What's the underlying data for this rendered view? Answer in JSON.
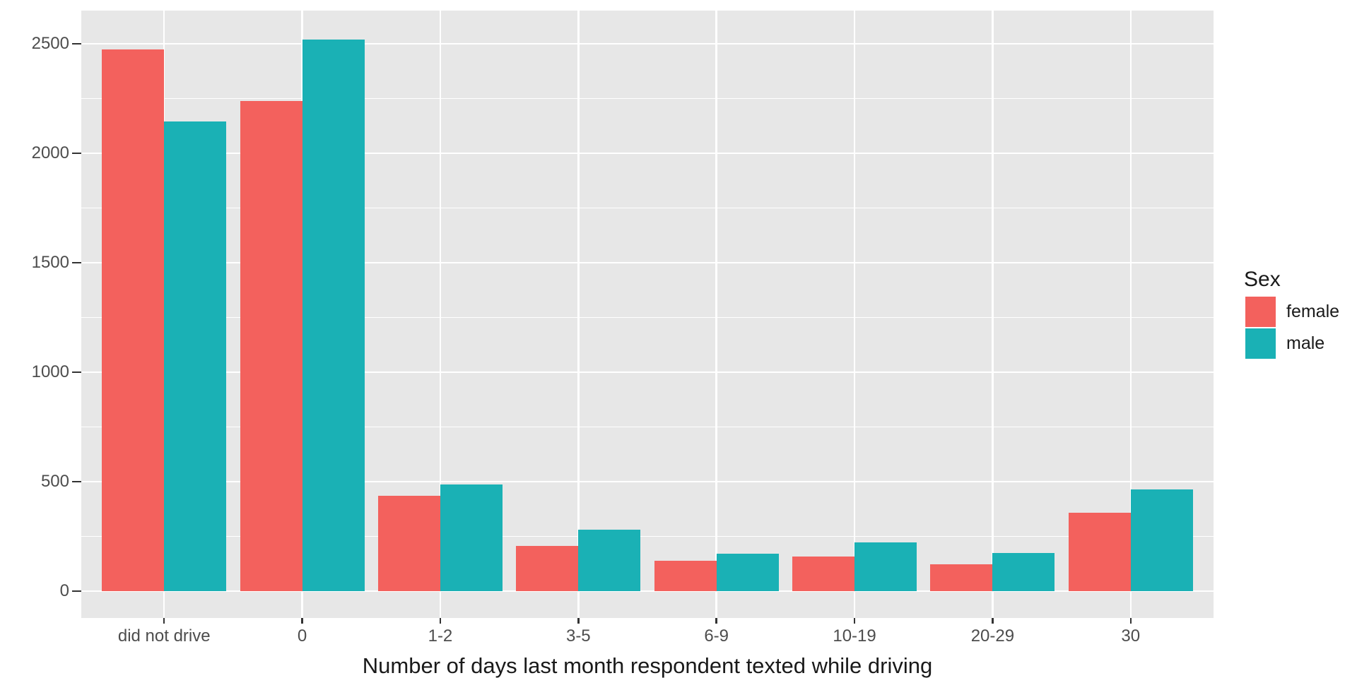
{
  "chart_data": {
    "type": "bar",
    "title": "",
    "xlabel": "Number of days last month respondent texted while driving",
    "ylabel": "",
    "categories": [
      "did not drive",
      "0",
      "1-2",
      "3-5",
      "6-9",
      "10-19",
      "20-29",
      "30"
    ],
    "series": [
      {
        "name": "female",
        "color": "#F3615D",
        "values": [
          2475,
          2240,
          435,
          205,
          138,
          157,
          121,
          358
        ]
      },
      {
        "name": "male",
        "color": "#1AB1B5",
        "values": [
          2145,
          2520,
          486,
          280,
          171,
          221,
          173,
          464
        ]
      }
    ],
    "y_ticks": [
      0,
      500,
      1000,
      1500,
      2000,
      2500
    ],
    "y_minor_ticks": [
      250,
      750,
      1250,
      1750,
      2250
    ],
    "ylim": [
      0,
      2650
    ],
    "grid": "major-and-minor, white on gray panel",
    "legend": {
      "title": "Sex",
      "position": "right",
      "entries": [
        "female",
        "male"
      ]
    },
    "colors": {
      "panel_background": "#E7E7E7",
      "gridline": "#FFFFFF",
      "axis_text": "#4D4D4D",
      "title_text": "#1A1A1A",
      "tick_mark": "#333333"
    }
  }
}
